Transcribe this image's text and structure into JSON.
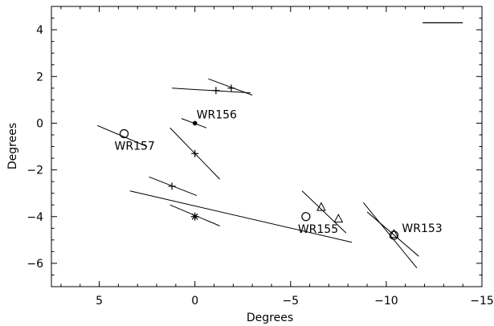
{
  "chart_data": {
    "type": "scatter",
    "title": "",
    "xlabel": "Degrees",
    "ylabel": "Degrees",
    "xlim": [
      7.5,
      -15
    ],
    "ylim": [
      -7,
      5
    ],
    "x_ticks": [
      5,
      0,
      -5,
      -10,
      -15
    ],
    "x_tick_labels": [
      "5",
      "0",
      "−5",
      "−10",
      "−15"
    ],
    "y_ticks": [
      4,
      2,
      0,
      -2,
      -4,
      -6
    ],
    "y_tick_labels": [
      "4",
      "2",
      "0",
      "−2",
      "−4",
      "−6"
    ],
    "grid": false,
    "legend": "none",
    "scale_bar": {
      "x": [
        -11.9,
        -14.0
      ],
      "y": 4.3
    },
    "line_color": "#000000",
    "segments": [
      {
        "x": [
          1.2,
          -2.9
        ],
        "y": [
          1.5,
          1.3
        ]
      },
      {
        "x": [
          -0.7,
          -3.0
        ],
        "y": [
          1.9,
          1.2
        ]
      },
      {
        "x": [
          0.7,
          -0.6
        ],
        "y": [
          0.2,
          -0.2
        ]
      },
      {
        "x": [
          5.1,
          2.5
        ],
        "y": [
          -0.1,
          -1.0
        ]
      },
      {
        "x": [
          1.3,
          -1.3
        ],
        "y": [
          -0.2,
          -2.4
        ]
      },
      {
        "x": [
          2.4,
          -0.1
        ],
        "y": [
          -2.3,
          -3.1
        ]
      },
      {
        "x": [
          1.3,
          -1.3
        ],
        "y": [
          -3.5,
          -4.4
        ]
      },
      {
        "x": [
          3.4,
          -8.2
        ],
        "y": [
          -2.9,
          -5.1
        ]
      },
      {
        "x": [
          -5.6,
          -7.9
        ],
        "y": [
          -2.9,
          -4.7
        ]
      },
      {
        "x": [
          -8.8,
          -11.6
        ],
        "y": [
          -3.4,
          -6.2
        ]
      },
      {
        "x": [
          -9.0,
          -11.7
        ],
        "y": [
          -3.8,
          -5.7
        ]
      }
    ],
    "markers": [
      {
        "symbol": "plus",
        "x": -1.1,
        "y": 1.4
      },
      {
        "symbol": "plus",
        "x": -1.9,
        "y": 1.5
      },
      {
        "symbol": "dot",
        "x": 0.0,
        "y": 0.0
      },
      {
        "symbol": "circle",
        "x": 3.7,
        "y": -0.45
      },
      {
        "symbol": "plus",
        "x": 0.0,
        "y": -1.3
      },
      {
        "symbol": "plus",
        "x": 1.2,
        "y": -2.7
      },
      {
        "symbol": "asterisk",
        "x": 0.0,
        "y": -4.0
      },
      {
        "symbol": "circle",
        "x": -5.8,
        "y": -4.0
      },
      {
        "symbol": "triangle",
        "x": -6.6,
        "y": -3.6
      },
      {
        "symbol": "triangle",
        "x": -7.5,
        "y": -4.1
      },
      {
        "symbol": "circle",
        "x": -10.4,
        "y": -4.8
      },
      {
        "symbol": "triangle",
        "x": -10.4,
        "y": -4.75
      }
    ],
    "annotations": [
      {
        "text": "WR156",
        "x": 0.0,
        "y": 0.0,
        "dx": 2,
        "dy": -6
      },
      {
        "text": "WR157",
        "x": 3.7,
        "y": -0.45,
        "dx": -12,
        "dy": 20
      },
      {
        "text": "WR155",
        "x": -5.8,
        "y": -4.0,
        "dx": -10,
        "dy": 20
      },
      {
        "text": "WR153",
        "x": -10.4,
        "y": -4.8,
        "dx": 10,
        "dy": -4
      }
    ]
  }
}
